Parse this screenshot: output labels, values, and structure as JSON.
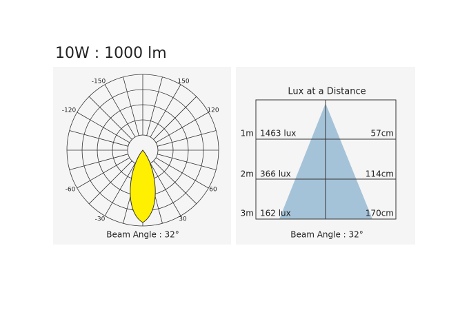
{
  "header": {
    "title": "10W : 1000 lm"
  },
  "polar": {
    "angle_labels": [
      {
        "text": "-150"
      },
      {
        "text": "150"
      },
      {
        "text": "-120"
      },
      {
        "text": "120"
      },
      {
        "text": "-60"
      },
      {
        "text": "60"
      },
      {
        "text": "-30"
      },
      {
        "text": "30"
      }
    ],
    "caption": "Beam Angle : 32°"
  },
  "lux": {
    "title": "Lux at a Distance",
    "rows": [
      {
        "distance": "1m",
        "lux": "1463 lux",
        "width": "57cm"
      },
      {
        "distance": "2m",
        "lux": "366 lux",
        "width": "114cm"
      },
      {
        "distance": "3m",
        "lux": "162 lux",
        "width": "170cm"
      }
    ],
    "caption": "Beam Angle : 32°"
  }
}
